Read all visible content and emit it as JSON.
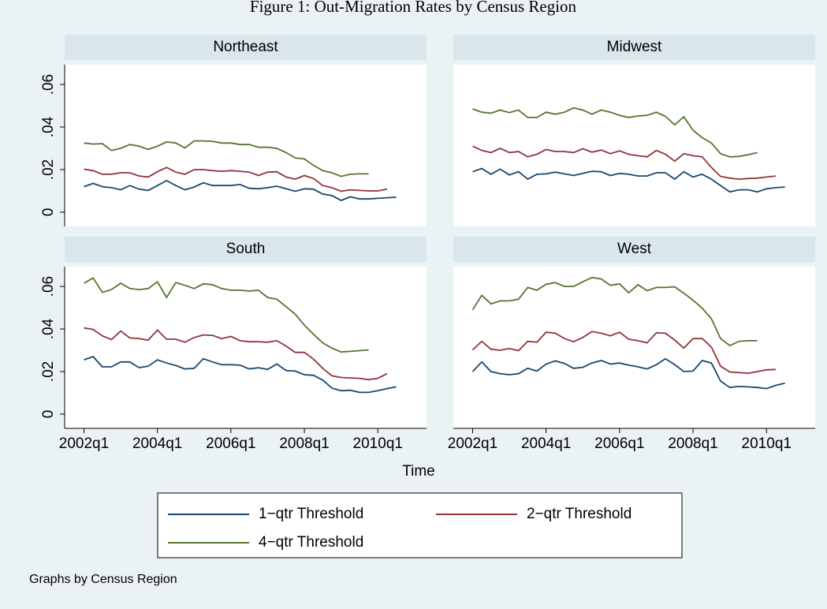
{
  "title": "Figure 1: Out-Migration Rates by Census Region",
  "xlabel": "Time",
  "note": "Graphs by Census Region",
  "chart_data": [
    {
      "type": "line",
      "title": "Northeast",
      "x": [
        168,
        169,
        170,
        171,
        172,
        173,
        174,
        175,
        176,
        177,
        178,
        179,
        180,
        181,
        182,
        183,
        184,
        185,
        186,
        187,
        188,
        189,
        190,
        191,
        192,
        193,
        194,
        195,
        196,
        197,
        198,
        199,
        200,
        201,
        202
      ],
      "xlim": [
        165.9,
        205.3
      ],
      "ylim": [
        -0.0067,
        0.0693
      ],
      "yticks": [
        {
          "value": 0,
          "label": "0"
        },
        {
          "value": 0.02,
          "label": ".02"
        },
        {
          "value": 0.04,
          "label": ".04"
        },
        {
          "value": 0.06,
          "label": ".06"
        }
      ],
      "grid": false,
      "series": [
        {
          "name": "1−qtr Threshold",
          "color": "#1a476f",
          "values": [
            0.012,
            0.0135,
            0.012,
            0.0115,
            0.0105,
            0.0125,
            0.0108,
            0.0102,
            0.0125,
            0.0148,
            0.0125,
            0.0105,
            0.0118,
            0.0138,
            0.0125,
            0.0125,
            0.0125,
            0.013,
            0.0112,
            0.011,
            0.0115,
            0.0122,
            0.011,
            0.0098,
            0.011,
            0.0108,
            0.0085,
            0.0078,
            0.0055,
            0.0072,
            0.0062,
            0.0062,
            0.0065,
            0.0068,
            0.007
          ]
        },
        {
          "name": "2−qtr Threshold",
          "color": "#90353b",
          "values": [
            0.0202,
            0.0195,
            0.0178,
            0.0178,
            0.0185,
            0.0185,
            0.017,
            0.0165,
            0.019,
            0.021,
            0.0188,
            0.0178,
            0.02,
            0.02,
            0.0195,
            0.0192,
            0.0195,
            0.0192,
            0.0188,
            0.0172,
            0.0188,
            0.019,
            0.0165,
            0.0155,
            0.0172,
            0.0158,
            0.0125,
            0.0115,
            0.0098,
            0.0105,
            0.0102,
            0.01,
            0.01,
            0.0108,
            null
          ]
        },
        {
          "name": "4−qtr Threshold",
          "color": "#55752f",
          "values": [
            0.0325,
            0.032,
            0.0322,
            0.029,
            0.03,
            0.0318,
            0.031,
            0.0295,
            0.031,
            0.033,
            0.0325,
            0.0302,
            0.0335,
            0.0335,
            0.0333,
            0.0325,
            0.0325,
            0.0318,
            0.0318,
            0.0305,
            0.0305,
            0.03,
            0.028,
            0.0255,
            0.025,
            0.022,
            0.0195,
            0.0185,
            0.0168,
            0.0178,
            0.018,
            0.018,
            null,
            null,
            null
          ]
        }
      ]
    },
    {
      "type": "line",
      "title": "Midwest",
      "x": [
        168,
        169,
        170,
        171,
        172,
        173,
        174,
        175,
        176,
        177,
        178,
        179,
        180,
        181,
        182,
        183,
        184,
        185,
        186,
        187,
        188,
        189,
        190,
        191,
        192,
        193,
        194,
        195,
        196,
        197,
        198,
        199,
        200,
        201,
        202
      ],
      "xlim": [
        165.9,
        205.3
      ],
      "ylim": [
        -0.0067,
        0.0693
      ],
      "grid": false,
      "series": [
        {
          "name": "1−qtr Threshold",
          "color": "#1a476f",
          "values": [
            0.019,
            0.0205,
            0.0178,
            0.0202,
            0.0175,
            0.019,
            0.0155,
            0.0178,
            0.018,
            0.0188,
            0.018,
            0.0172,
            0.0182,
            0.0192,
            0.019,
            0.0172,
            0.0182,
            0.0178,
            0.017,
            0.017,
            0.0185,
            0.0185,
            0.0155,
            0.019,
            0.0165,
            0.0178,
            0.0155,
            0.0125,
            0.0095,
            0.0105,
            0.0105,
            0.0095,
            0.011,
            0.0115,
            0.0118
          ]
        },
        {
          "name": "2−qtr Threshold",
          "color": "#90353b",
          "values": [
            0.031,
            0.029,
            0.028,
            0.03,
            0.028,
            0.0285,
            0.026,
            0.0272,
            0.0295,
            0.0285,
            0.0285,
            0.028,
            0.0298,
            0.0282,
            0.0292,
            0.0275,
            0.0288,
            0.0272,
            0.0265,
            0.026,
            0.029,
            0.0272,
            0.024,
            0.0275,
            0.0265,
            0.026,
            0.021,
            0.0168,
            0.016,
            0.0155,
            0.0158,
            0.016,
            0.0165,
            0.017,
            null
          ]
        },
        {
          "name": "4−qtr Threshold",
          "color": "#55752f",
          "values": [
            0.0485,
            0.047,
            0.0465,
            0.048,
            0.0468,
            0.048,
            0.0445,
            0.0445,
            0.047,
            0.046,
            0.047,
            0.049,
            0.048,
            0.046,
            0.048,
            0.047,
            0.0455,
            0.0445,
            0.0452,
            0.0455,
            0.047,
            0.045,
            0.041,
            0.0448,
            0.0385,
            0.035,
            0.0325,
            0.0275,
            0.026,
            0.0262,
            0.027,
            0.028,
            null,
            null,
            null
          ]
        }
      ]
    },
    {
      "type": "line",
      "title": "South",
      "x": [
        168,
        169,
        170,
        171,
        172,
        173,
        174,
        175,
        176,
        177,
        178,
        179,
        180,
        181,
        182,
        183,
        184,
        185,
        186,
        187,
        188,
        189,
        190,
        191,
        192,
        193,
        194,
        195,
        196,
        197,
        198,
        199,
        200,
        201,
        202
      ],
      "xlim": [
        165.9,
        205.3
      ],
      "ylim": [
        -0.0067,
        0.0693
      ],
      "yticks": [
        {
          "value": 0,
          "label": "0"
        },
        {
          "value": 0.02,
          "label": ".02"
        },
        {
          "value": 0.04,
          "label": ".04"
        },
        {
          "value": 0.06,
          "label": ".06"
        }
      ],
      "xticks": [
        {
          "value": 168,
          "label": "2002q1"
        },
        {
          "value": 176,
          "label": "2004q1"
        },
        {
          "value": 184,
          "label": "2006q1"
        },
        {
          "value": 192,
          "label": "2008q1"
        },
        {
          "value": 200,
          "label": "2010q1"
        }
      ],
      "grid": false,
      "series": [
        {
          "name": "1−qtr Threshold",
          "color": "#1a476f",
          "values": [
            0.0255,
            0.027,
            0.0222,
            0.0222,
            0.0245,
            0.0245,
            0.0218,
            0.0225,
            0.0255,
            0.024,
            0.0228,
            0.0212,
            0.0215,
            0.026,
            0.0245,
            0.0232,
            0.0232,
            0.023,
            0.0212,
            0.0218,
            0.021,
            0.0235,
            0.0205,
            0.0202,
            0.0185,
            0.0182,
            0.016,
            0.0122,
            0.011,
            0.0112,
            0.0102,
            0.0102,
            0.011,
            0.012,
            0.0128
          ]
        },
        {
          "name": "2−qtr Threshold",
          "color": "#90353b",
          "values": [
            0.0405,
            0.0398,
            0.0368,
            0.035,
            0.039,
            0.0358,
            0.0355,
            0.0348,
            0.0395,
            0.0352,
            0.0352,
            0.0338,
            0.036,
            0.0372,
            0.037,
            0.0355,
            0.0365,
            0.0345,
            0.034,
            0.034,
            0.0338,
            0.0345,
            0.032,
            0.029,
            0.029,
            0.0258,
            0.0215,
            0.018,
            0.0172,
            0.017,
            0.0168,
            0.0162,
            0.0168,
            0.019,
            null
          ]
        },
        {
          "name": "4−qtr Threshold",
          "color": "#55752f",
          "values": [
            0.0615,
            0.064,
            0.0572,
            0.0585,
            0.0615,
            0.059,
            0.0585,
            0.059,
            0.0622,
            0.0548,
            0.0618,
            0.0605,
            0.059,
            0.0612,
            0.0608,
            0.059,
            0.0582,
            0.0582,
            0.0578,
            0.0582,
            0.0548,
            0.054,
            0.0505,
            0.047,
            0.0418,
            0.0375,
            0.0335,
            0.031,
            0.0292,
            0.0295,
            0.0298,
            0.0302,
            null,
            null,
            null
          ]
        }
      ]
    },
    {
      "type": "line",
      "title": "West",
      "x": [
        168,
        169,
        170,
        171,
        172,
        173,
        174,
        175,
        176,
        177,
        178,
        179,
        180,
        181,
        182,
        183,
        184,
        185,
        186,
        187,
        188,
        189,
        190,
        191,
        192,
        193,
        194,
        195,
        196,
        197,
        198,
        199,
        200,
        201,
        202
      ],
      "xlim": [
        165.9,
        205.3
      ],
      "ylim": [
        -0.0067,
        0.0693
      ],
      "xticks": [
        {
          "value": 168,
          "label": "2002q1"
        },
        {
          "value": 176,
          "label": "2004q1"
        },
        {
          "value": 184,
          "label": "2006q1"
        },
        {
          "value": 192,
          "label": "2008q1"
        },
        {
          "value": 200,
          "label": "2010q1"
        }
      ],
      "grid": false,
      "series": [
        {
          "name": "1−qtr Threshold",
          "color": "#1a476f",
          "values": [
            0.02,
            0.0245,
            0.02,
            0.019,
            0.0185,
            0.019,
            0.0215,
            0.0202,
            0.0235,
            0.025,
            0.0238,
            0.0215,
            0.022,
            0.024,
            0.0252,
            0.0235,
            0.024,
            0.023,
            0.0222,
            0.0212,
            0.0232,
            0.026,
            0.0232,
            0.02,
            0.0202,
            0.0252,
            0.024,
            0.0155,
            0.0125,
            0.013,
            0.0128,
            0.0125,
            0.012,
            0.0135,
            0.0145
          ]
        },
        {
          "name": "2−qtr Threshold",
          "color": "#90353b",
          "values": [
            0.0302,
            0.0342,
            0.0305,
            0.03,
            0.0308,
            0.0298,
            0.0342,
            0.0338,
            0.0385,
            0.038,
            0.0355,
            0.034,
            0.036,
            0.0388,
            0.038,
            0.0368,
            0.0385,
            0.0352,
            0.0345,
            0.0335,
            0.0382,
            0.038,
            0.0348,
            0.031,
            0.0355,
            0.0355,
            0.0315,
            0.0225,
            0.0198,
            0.0195,
            0.0192,
            0.02,
            0.0208,
            0.021,
            null
          ]
        },
        {
          "name": "4−qtr Threshold",
          "color": "#55752f",
          "values": [
            0.049,
            0.0558,
            0.0518,
            0.0532,
            0.0532,
            0.054,
            0.0595,
            0.0582,
            0.061,
            0.0618,
            0.06,
            0.06,
            0.0622,
            0.0642,
            0.0635,
            0.0605,
            0.0612,
            0.057,
            0.0608,
            0.058,
            0.0595,
            0.0595,
            0.0598,
            0.0568,
            0.0535,
            0.0498,
            0.0448,
            0.0355,
            0.0322,
            0.0342,
            0.0345,
            0.0345,
            null,
            null,
            null
          ]
        }
      ]
    }
  ]
}
